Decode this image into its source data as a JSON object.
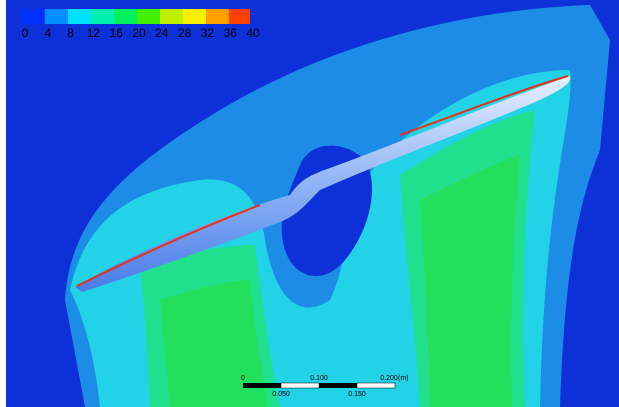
{
  "legend": {
    "labels": [
      "0",
      "4",
      "8",
      "12",
      "16",
      "20",
      "24",
      "28",
      "32",
      "36",
      "40"
    ]
  },
  "scale_bar": {
    "top_labels": [
      "0",
      "0.100",
      "0.200"
    ],
    "unit": "(m)",
    "bottom_labels": [
      "0.050",
      "0.150"
    ]
  }
}
